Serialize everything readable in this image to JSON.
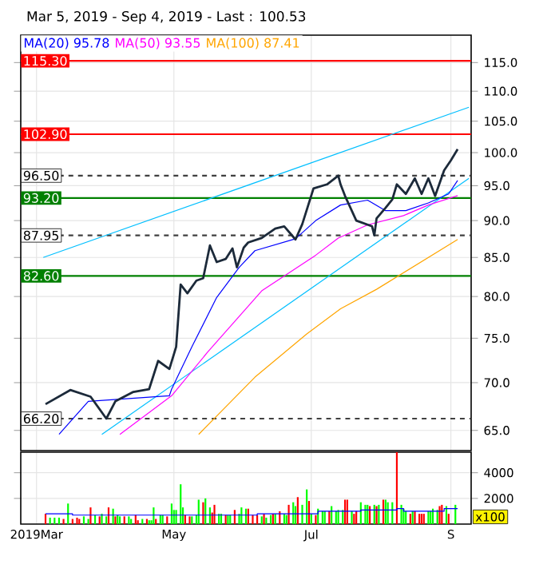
{
  "chart_data": [
    {
      "type": "line",
      "title": "Mar 5, 2019 - Sep 4, 2019 - Last : 100.53",
      "log": "y",
      "grid": true,
      "legend": "top left",
      "tick_labels": "y",
      "xlim": [
        "2019-02-22",
        "2019-09-10"
      ],
      "xticks": [
        {
          "value": "2019-03-01",
          "label": null
        },
        {
          "value": "2019-05-01",
          "label": null
        },
        {
          "value": "2019-07-01",
          "label": null
        },
        {
          "value": "2019-09-01",
          "label": null
        }
      ],
      "ylim": [
        63,
        120
      ],
      "yticks": [
        {
          "value": 65,
          "label": "65.0"
        },
        {
          "value": 70,
          "label": "70.0"
        },
        {
          "value": 75,
          "label": "75.0"
        },
        {
          "value": 80,
          "label": "80.0"
        },
        {
          "value": 85,
          "label": "85.0"
        },
        {
          "value": 90,
          "label": "90.0"
        },
        {
          "value": 95,
          "label": "95.0"
        },
        {
          "value": 100,
          "label": "100.0"
        },
        {
          "value": 105,
          "label": "105.0"
        },
        {
          "value": 110,
          "label": "110.0"
        },
        {
          "value": 115,
          "label": "115.0"
        }
      ],
      "ref_lines": [
        {
          "axis": "y",
          "value": 115.3,
          "label": "115.30",
          "color": "#ff0000",
          "line_style": "solid"
        },
        {
          "axis": "y",
          "value": 102.9,
          "label": "102.90",
          "color": "#ff0000",
          "line_style": "solid"
        },
        {
          "axis": "y",
          "value": 96.5,
          "label": "96.50",
          "color": "#404040",
          "line_style": "dashed"
        },
        {
          "axis": "y",
          "value": 93.2,
          "label": "93.20",
          "color": "#008000",
          "line_style": "solid"
        },
        {
          "axis": "y",
          "value": 87.95,
          "label": "87.95",
          "color": "#404040",
          "line_style": "dashed"
        },
        {
          "axis": "y",
          "value": 82.6,
          "label": "82.60",
          "color": "#008000",
          "line_style": "solid"
        },
        {
          "axis": "y",
          "value": 66.2,
          "label": "66.20",
          "color": "#404040",
          "line_style": "dashed"
        }
      ],
      "series": [
        {
          "color": "#00bfff",
          "x": [
            "2019-03-04",
            "2019-09-09"
          ],
          "values": [
            85.0,
            107.3
          ]
        },
        {
          "color": "#00bfff",
          "x": [
            "2019-03-30",
            "2019-09-09"
          ],
          "values": [
            64.6,
            96.1
          ]
        },
        {
          "name": "MA(100) 87.41",
          "color": "#ffa500",
          "x": [
            "2019-05-12",
            "2019-06-06",
            "2019-06-29",
            "2019-07-14",
            "2019-07-30",
            "2019-09-04"
          ],
          "values": [
            64.6,
            70.6,
            75.5,
            78.5,
            80.9,
            87.41
          ]
        },
        {
          "name": "MA(50) 93.55",
          "color": "#ff00ff",
          "x": [
            "2019-04-07",
            "2019-04-30",
            "2019-05-16",
            "2019-06-09",
            "2019-07-03",
            "2019-07-13",
            "2019-07-26",
            "2019-08-11",
            "2019-08-22",
            "2019-09-04"
          ],
          "values": [
            64.6,
            68.6,
            73.4,
            80.7,
            85.3,
            87.6,
            89.4,
            90.7,
            92.2,
            93.55
          ]
        },
        {
          "name": "MA(20) 95.78",
          "color": "#0000ff",
          "x": [
            "2019-03-11",
            "2019-03-24",
            "2019-04-29",
            "2019-04-30",
            "2019-05-09",
            "2019-05-20",
            "2019-05-30",
            "2019-06-06",
            "2019-06-24",
            "2019-07-03",
            "2019-07-14",
            "2019-07-26",
            "2019-08-03",
            "2019-08-12",
            "2019-08-22",
            "2019-08-31",
            "2019-09-04"
          ],
          "values": [
            64.6,
            68.0,
            68.6,
            69.3,
            74.0,
            79.9,
            83.7,
            85.9,
            87.5,
            90.0,
            92.2,
            92.9,
            91.4,
            91.4,
            92.5,
            93.8,
            95.78
          ]
        },
        {
          "color": "#1c2a3a",
          "x": [
            "2019-03-05",
            "2019-03-16",
            "2019-03-25",
            "2019-04-01",
            "2019-04-05",
            "2019-04-13",
            "2019-04-20",
            "2019-04-24",
            "2019-04-29",
            "2019-05-02",
            "2019-05-04",
            "2019-05-07",
            "2019-05-11",
            "2019-05-14",
            "2019-05-17",
            "2019-05-20",
            "2019-05-24",
            "2019-05-27",
            "2019-05-29",
            "2019-06-01",
            "2019-06-03",
            "2019-06-09",
            "2019-06-15",
            "2019-06-19",
            "2019-06-24",
            "2019-06-27",
            "2019-07-02",
            "2019-07-08",
            "2019-07-13",
            "2019-07-14",
            "2019-07-16",
            "2019-07-21",
            "2019-07-28",
            "2019-07-29",
            "2019-07-30",
            "2019-08-03",
            "2019-08-06",
            "2019-08-08",
            "2019-08-12",
            "2019-08-16",
            "2019-08-19",
            "2019-08-22",
            "2019-08-25",
            "2019-08-29",
            "2019-09-01",
            "2019-09-04"
          ],
          "values": [
            67.7,
            69.2,
            68.5,
            66.2,
            68.0,
            69.0,
            69.3,
            72.4,
            71.5,
            74.0,
            81.5,
            80.4,
            82.0,
            82.3,
            86.6,
            84.4,
            84.8,
            86.2,
            83.7,
            86.3,
            87.0,
            87.6,
            88.9,
            89.2,
            87.4,
            89.5,
            94.6,
            95.2,
            96.5,
            95.2,
            93.5,
            90.0,
            89.2,
            87.95,
            90.3,
            91.8,
            93.0,
            95.2,
            93.8,
            96.1,
            93.8,
            96.1,
            93.5,
            97.3,
            98.8,
            100.53
          ]
        }
      ]
    },
    {
      "type": "bar",
      "ylabel": "x100",
      "grid": true,
      "xlim": [
        "2019-02-22",
        "2019-09-10"
      ],
      "xticks": [
        {
          "value": "2019-03-01",
          "label": "2019Mar"
        },
        {
          "value": "2019-05-01",
          "label": "May"
        },
        {
          "value": "2019-07-01",
          "label": "Jul"
        },
        {
          "value": "2019-09-01",
          "label": "S"
        }
      ],
      "ylim": [
        0,
        5600
      ],
      "yticks": [
        2000,
        4000
      ],
      "series": [
        {
          "x": [
            "2019-03-05",
            "2019-03-07",
            "2019-03-09",
            "2019-03-11",
            "2019-03-13",
            "2019-03-15",
            "2019-03-17",
            "2019-03-19",
            "2019-03-20",
            "2019-03-22",
            "2019-03-24",
            "2019-03-25",
            "2019-03-27",
            "2019-03-29",
            "2019-03-30",
            "2019-04-01",
            "2019-04-02",
            "2019-04-04",
            "2019-04-05",
            "2019-04-06",
            "2019-04-07",
            "2019-04-09",
            "2019-04-11",
            "2019-04-12",
            "2019-04-14",
            "2019-04-15",
            "2019-04-17",
            "2019-04-19",
            "2019-04-20",
            "2019-04-21",
            "2019-04-22",
            "2019-04-23",
            "2019-04-25",
            "2019-04-26",
            "2019-04-28",
            "2019-04-30",
            "2019-05-01",
            "2019-05-02",
            "2019-05-04",
            "2019-05-05",
            "2019-05-06",
            "2019-05-08",
            "2019-05-09",
            "2019-05-11",
            "2019-05-12",
            "2019-05-14",
            "2019-05-15",
            "2019-05-17",
            "2019-05-18",
            "2019-05-19",
            "2019-05-21",
            "2019-05-22",
            "2019-05-24",
            "2019-05-25",
            "2019-05-26",
            "2019-05-28",
            "2019-05-30",
            "2019-05-31",
            "2019-06-02",
            "2019-06-03",
            "2019-06-05",
            "2019-06-07",
            "2019-06-09",
            "2019-06-10",
            "2019-06-11",
            "2019-06-13",
            "2019-06-14",
            "2019-06-15",
            "2019-06-17",
            "2019-06-19",
            "2019-06-20",
            "2019-06-21",
            "2019-06-23",
            "2019-06-24",
            "2019-06-25",
            "2019-06-27",
            "2019-06-29",
            "2019-06-30",
            "2019-07-01",
            "2019-07-03",
            "2019-07-04",
            "2019-07-06",
            "2019-07-07",
            "2019-07-09",
            "2019-07-10",
            "2019-07-12",
            "2019-07-13",
            "2019-07-15",
            "2019-07-16",
            "2019-07-17",
            "2019-07-19",
            "2019-07-20",
            "2019-07-21",
            "2019-07-23",
            "2019-07-25",
            "2019-07-26",
            "2019-07-27",
            "2019-07-29",
            "2019-07-30",
            "2019-07-31",
            "2019-08-02",
            "2019-08-03",
            "2019-08-04",
            "2019-08-06",
            "2019-08-08",
            "2019-08-10",
            "2019-08-11",
            "2019-08-12",
            "2019-08-14",
            "2019-08-15",
            "2019-08-16",
            "2019-08-18",
            "2019-08-19",
            "2019-08-20",
            "2019-08-22",
            "2019-08-23",
            "2019-08-24",
            "2019-08-26",
            "2019-08-27",
            "2019-08-28",
            "2019-08-30",
            "2019-08-31",
            "2019-09-03"
          ],
          "values": [
            800,
            500,
            500,
            500,
            400,
            1600,
            400,
            500,
            400,
            600,
            400,
            1300,
            700,
            600,
            800,
            600,
            1300,
            1200,
            600,
            700,
            600,
            600,
            600,
            400,
            700,
            300,
            400,
            400,
            300,
            300,
            1300,
            400,
            700,
            700,
            600,
            1600,
            1100,
            1100,
            3100,
            1300,
            700,
            600,
            600,
            700,
            1900,
            1700,
            2000,
            1300,
            900,
            1500,
            800,
            800,
            700,
            700,
            700,
            1100,
            800,
            1300,
            1200,
            1200,
            700,
            700,
            600,
            800,
            500,
            700,
            800,
            800,
            1000,
            800,
            700,
            1500,
            1700,
            1400,
            2100,
            1500,
            2700,
            1800,
            800,
            700,
            1200,
            1000,
            1000,
            1000,
            1400,
            1000,
            1100,
            1100,
            1900,
            1900,
            1000,
            800,
            1000,
            1700,
            1500,
            1500,
            1400,
            1500,
            1400,
            1500,
            1900,
            1900,
            1700,
            1700,
            5600,
            1500,
            1200,
            1000,
            800,
            1000,
            1000,
            800,
            800,
            800,
            1000,
            1000,
            1200,
            1100,
            1400,
            1500,
            1400,
            800,
            1500
          ],
          "colors": [
            "#ff0000",
            "#00ff00",
            "#00ff00",
            "#00ff00",
            "#ff0000",
            "#00ff00",
            "#ff0000",
            "#ff0000",
            "#ff0000",
            "#00ff00",
            "#00ff00",
            "#ff0000",
            "#00ff00",
            "#ff0000",
            "#00ff00",
            "#00ff00",
            "#ff0000",
            "#00ff00",
            "#ff0000",
            "#00ff00",
            "#00ff00",
            "#ff0000",
            "#00ff00",
            "#00ff00",
            "#ff0000",
            "#ff0000",
            "#00ff00",
            "#ff0000",
            "#00ff00",
            "#00ff00",
            "#00ff00",
            "#ff0000",
            "#00ff00",
            "#00ff00",
            "#ff0000",
            "#00ff00",
            "#00ff00",
            "#00ff00",
            "#00ff00",
            "#00ff00",
            "#ff0000",
            "#ff0000",
            "#00ff00",
            "#00ff00",
            "#00ff00",
            "#ff0000",
            "#00ff00",
            "#00ff00",
            "#ff0000",
            "#ff0000",
            "#00ff00",
            "#00ff00",
            "#ff0000",
            "#00ff00",
            "#00ff00",
            "#ff0000",
            "#00ff00",
            "#00ff00",
            "#00ff00",
            "#ff0000",
            "#ff0000",
            "#ff0000",
            "#00ff00",
            "#ff0000",
            "#00ff00",
            "#00ff00",
            "#ff0000",
            "#00ff00",
            "#ff0000",
            "#00ff00",
            "#00ff00",
            "#ff0000",
            "#00ff00",
            "#00ff00",
            "#ff0000",
            "#00ff00",
            "#00ff00",
            "#ff0000",
            "#00ff00",
            "#ff0000",
            "#00ff00",
            "#00ff00",
            "#00ff00",
            "#ff0000",
            "#00ff00",
            "#00ff00",
            "#00ff00",
            "#00ff00",
            "#ff0000",
            "#ff0000",
            "#00ff00",
            "#ff0000",
            "#ff0000",
            "#00ff00",
            "#00ff00",
            "#00ff00",
            "#ff0000",
            "#00ff00",
            "#ff0000",
            "#00ff00",
            "#ff0000",
            "#00ff00",
            "#00ff00",
            "#00ff00",
            "#ff0000",
            "#00ff00",
            "#00ff00",
            "#00ff00",
            "#ff0000",
            "#00ff00",
            "#ff0000",
            "#ff0000",
            "#ff0000",
            "#ff0000",
            "#00ff00",
            "#00ff00",
            "#00ff00",
            "#00ff00",
            "#ff0000",
            "#ff0000",
            "#00ff00",
            "#ff0000",
            "#00ff00"
          ]
        },
        {
          "type": "step",
          "color": "#0000ff",
          "x": [
            "2019-03-05",
            "2019-03-17",
            "2019-05-03",
            "2019-06-07",
            "2019-07-04",
            "2019-07-23",
            "2019-08-08",
            "2019-08-11",
            "2019-08-29",
            "2019-09-04"
          ],
          "values": [
            800,
            700,
            700,
            800,
            1000,
            1100,
            1200,
            1000,
            1200,
            1200
          ]
        }
      ]
    }
  ]
}
